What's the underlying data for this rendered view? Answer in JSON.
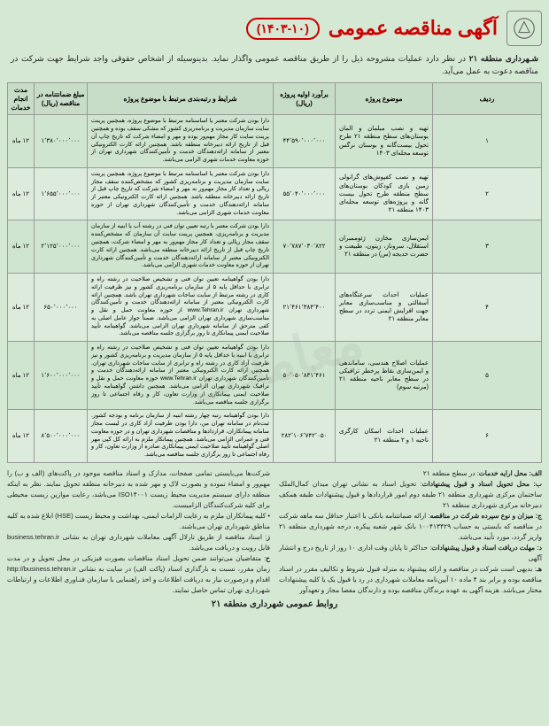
{
  "header": {
    "title": "آگهی مناقصه عمومی",
    "tender_no": "(۱۴۰۳-۱۰)"
  },
  "intro": {
    "bold": "شـهرداری منطقه ۲۱",
    "text": " در نظر دارد عملیات مشروحه ذیل را از طریق مناقصه عمومی واگذار نماید. بدینوسیله از اشخاص حقوقی واجد شرایط جهت شرکت در مناقصه دعوت به عمل می‌آید."
  },
  "columns": [
    "ردیف",
    "موضوع پروژه",
    "برآورد اولیه پروژه (ریال)",
    "شرایط و رتبه‌بندی مرتبط با موضوع پروژه",
    "مبلغ ضمانتنامه در مناقصه (ریال)",
    "مدت انجام خدمات"
  ],
  "rows": [
    {
      "n": "۱",
      "subject": "تهیه و نصب مبلمان و المان بوستان‌های سطح منطقه ۲۱ طرح تحول بیست‌گانه و بوستان نرگس توسعه محله‌ای ۱۴۰۳",
      "estimate": "۴۴٬۵۹۰٬۰۰۰٬۰۰۰",
      "conditions": "دارا بودن شرکت معتبر یا اساسنامه مرتبط با موضوع پروژه، همچنین پرینت سایت سازمان مدیریت و برنامه‌ریزی کشور که مشکی سقف بوده و همچنین پرینت سایت کار مجاز مهم‌ور بوده و مهر و امضاء شرکت که تاریخ چاپ آن قبل از تاریخ ارائه دبیرخانه منطقه باشد. همچنین ارائه کارت الکترونیکی معتبر از سامانه ارائه‌دهندگان خدمت و تأمین‌کنندگان شهرداری تهران از حوزه معاونت خدمات شهری الزامی می‌باشد.",
      "guarantee": "۱٬۳۸۰٬۰۰۰٬۰۰۰",
      "duration": "۱۲ ماه"
    },
    {
      "n": "۲",
      "subject": "تهیه و نصب کفپوش‌های گرانولی زمین بازی کودکان بوستان‌های سطح منطقه طرح تحول بیست گانه و پروژه‌های توسعه محله‌ای ۱۴۰۳ منطقه ۲۱",
      "estimate": "۵۵٬۰۴۰٬۰۰۰٬۰۰۰",
      "conditions": "دارا بودن شرکت معتبر یا اساسنامه مرتبط با موضوع پروژه، همچنین پرینت سایت سازمان مدیریت و برنامه‌ریزی کشور که مشخص‌کننده سقف مجاز ریالی و تعداد کار مجاز مهم‌ور به مهر و امضاء شرکت که تاریخ چاپ قبل از تاریخ ارائه دبیرخانه منطقه باشد. همچنین ارائه کارت الکترونیکی معتبر از سامانه ارائه‌دهندگان خدمت و تأمین‌کنندگان شهرداری تهران از حوزه معاونت خدمات شهری الزامی می‌باشد.",
      "guarantee": "۱٬۶۵۵٬۰۰۰٬۰۰۰",
      "duration": "۱۲ ماه"
    },
    {
      "n": "۳",
      "subject": "ایمن‌سازی مخازن ژئوممبران استقلال، سروناز، زیتون، طبیعت و حضرت خدیجه (س) در منطقه ۲۱",
      "estimate": "۷۰٬۷۸۷٬۰۳۰٬۸۲۲",
      "conditions": "دارا بودن شرکت معتبر با رتبه تعیین توان فنی در رشته آب یا ابنیه از سازمان مدیریت و برنامه‌ریزی، همچنین پرینت سایت آن سازمان که مشخص‌کننده سقف مجاز ریالی و تعداد کار مجاز مهم‌ور به مهر و امضاء شرکت، همچنین تاریخ چاپ قبل از تاریخ ارائه دبیرخانه منطقه می‌باشد. همچنین ارائه کارت الکترونیکی معتبر از سامانه ارائه‌دهندگان خدمت و تأمین‌کنندگان شهرداری تهران از حوزه معاونت خدمات شهری الزامی می‌باشد.",
      "guarantee": "۲٬۱۲۵٬۰۰۰٬۰۰۰",
      "duration": "۱۲ ماه"
    },
    {
      "n": "۴",
      "subject": "عملیات احداث سرعتگاه‌های آسفالتی و مناسب‌سازی معابر جهت افزایش ایمنی تردد در سطح معابر منطقه ۲۱",
      "estimate": "۲۱٬۴۶۱٬۳۸۴٬۴۰۰",
      "conditions": "دارا بودن گواهینامه تعیین توان فنی و تشخیص صلاحیت در رشته راه و ترابری با حداقل پایه ۵ از سازمان برنامه‌ریزی کشور و نیز ظرفیت ارائه کاری در رشته مرتبط از سایت ساجات شهرداری تهران باشد. همچنین ارائه کارت الکترونیکی معتبر از سامانه ارائه‌دهندگان خدمت و تأمین‌کنندگان شهرداری تهران www.Tehran.ir از حوزه معاونت حمل و نقل و مناسب‌سازی شهرداری تهران الزامی می‌باشد. ضمناً جواز عامل اصلی به کفی مترحق از سامانه شهرداری تهران الزامی می‌باشد. گواهینامه تأیید صلاحیت ایمنی پیمانکاری تا روز برگزاری جلسه مناقصه می‌باشد.",
      "guarantee": "۶۵۰٬۰۰۰٬۰۰۰",
      "duration": "۱۲ ماه"
    },
    {
      "n": "۵",
      "subject": "عملیات اصلاح هندسی، ساماندهی و ایمن‌سازی نقاط پرخطر ترافیکی در سطح معابر ناحیه منطقه ۲۱ (مرتبه سوم)",
      "estimate": "۵۰٬۰۵۰٬۸۳۱٬۴۶۱",
      "conditions": "دارا بودن گواهینامه تعیین توان فنی و تشخیص صلاحیت در رشته راه و ترابری یا ابنیه با حداقل پایه ۵ از سازمان مدیریت و برنامه‌ریزی کشور و نیز ظرفیت آزاد کاری در رشته راه و ترابری از سایت ساجات شهرداری تهران. همچنین ارائه کارت الکترونیکی معتبر از سامانه ارائه‌دهندگان خدمت و تأمین‌کنندگان شهرداری تهران www.Tehran.ir حوزه معاونت حمل و نقل و ترافیک شهرداری تهران الزامی می‌باشد. همچنین داشتن گواهینامه تأیید صلاحیت ایمنی پیمانکاری از وزارت تعاون، کار و رفاه اجتماعی تا روز برگزاری جلسه مناقصه می‌باشد.",
      "guarantee": "۱٬۶۰۰٬۰۰۰٬۰۰۰",
      "duration": "۱۲ ماه"
    },
    {
      "n": "۶",
      "subject": "عملیات احداث اسکان کارگری ناحیه ۱ و ۲ منطقه ۲۱",
      "estimate": "۲۸۲٬۱۰۶٬۷۴۲٬۰۵۰",
      "conditions": "دارا بودن گواهینامه رتبه چهار رشته ابنیه از سازمان برنامه و بودجه کشور. ثبت‌نام در سامانه تهران من، دارا بودن ظرفیت آزاد کاری در لیست مجاز سامانه پیمانکاران، قراردادها و مناقصات شهرداری تهران و در حوزه معاونت فنی و عمرانی الزامی می‌باشد. همچنین پیمانکار ملزم به ارائه کل کپی مهر اصلی گواهینامه تأیید صلاحیت ایمنی پیمانکاری صادره از وزارت تعاون، کار و رفاه اجتماعی تا روز برگزاری جلسه مناقصه می‌باشد.",
      "guarantee": "۸٬۵۰۰٬۰۰۰٬۰۰۰",
      "duration": "۱۲ ماه"
    }
  ],
  "notes_right": {
    "a_bold": "الف: محل ارایه خدمات",
    "a": ": در سطح منطقه ۲۱",
    "b_bold": "ب: محل تحویل اسناد و قبول پیشنهادات",
    "b": ": تحویل اسناد به نشانی تهران میدان کمال‌الملک ساختمان مرکزی شهرداری منطقه ۲۱ طبقه دوم امور قراردادها و قبول پیشنهادات طبقه همکف دبیرخانه مرکزی شهرداری منطقه ۲۱",
    "c_bold": "ج: میزان و نوع سپرده شرکت در مناقصه",
    "c": ": ارائه ضمانتنامه بانکی با اعتبار حداقل سه ماهه شرکت در مناقصه که بایستی به حساب ۱۰۰۴۱۳۴۲۹ بانک شهر شعبه پیکره، درجه شهرداری منطقه ۲۱ واریز گردد، مورد تأیید می‌باشد.",
    "d_bold": "د: مهلت دریافت اسناد و قبول پیشنهادات",
    "d": ": حداکثر تا پایان وقت اداری ۱۰ روز از تاریخ درج و انتشار آگهی",
    "e_bold": "هـ",
    "e": ": بدیهی است شرکت در مناقصه و ارائه پیشنهاد به منزله قبول شروط و تکالیف مقرر در اسناد مناقصه بوده و برابر بند ۴ ماده ۱۰ آیین‌نامه معاملات شهرداری در رد یا قبول یک یا کلیه پیشنهادات مختار می‌باشد. هزینه آگهی به عهده برندگان مناقصه بوده و دارندگان مفصا مجاز و تعهدآور"
  },
  "notes_left": {
    "p1": "شرکت‌ها می‌بایستی تمامی صفحات، مدارک و اسناد مناقصه موجود در پاکت‌های (الف و ب) را مهم‌ور و امضاء نموده و بصورت لاک و مهر شده به دبیرخانه منطقه تحویل نمایند. نظر به اینکه منطقه دارای سیستم مدیریت محیط زیست ISO۱۴۰۰۱ می‌باشد، رعایت موازین زیست محیطی برای کلیه شرکت‌کنندگان الزامیست.",
    "p2": "• کلیه پیمانکاران ملزم به رعایت الزامات ایمنی، بهداشت و محیط زیست (HSE) ابلاغ شده به کلیه مناطق شهرداری تهران می‌باشند.",
    "p3_bold": "ز",
    "p3": ": اسناد مناقصه از طریق تارلال آگهی معاملات شهرداری تهران به نشانی business.tehran.ir قابل رویت و دریافت می‌باشد.",
    "p4_bold": "ح",
    "p4": ": متقاضیان می‌توانند ضمن تحویل اسناد مناقصات بصورت فیزیکی در محل تحویل و در مدت زمان مقرر، نسبت به بارگذاری اسناد (پاکت الف) در سایت به نشانی http://business.tehran.ir اقدام و درصورت نیاز به دریافت اطلاعات و اخذ راهنمایی با سازمان فنـاوری اطلاعات و ارتباطات شهرداری تهران تماس حاصل نمایند."
  },
  "footer": "روابط عمومی شهرداری منطقه ۲۱",
  "watermark": "معاملات"
}
